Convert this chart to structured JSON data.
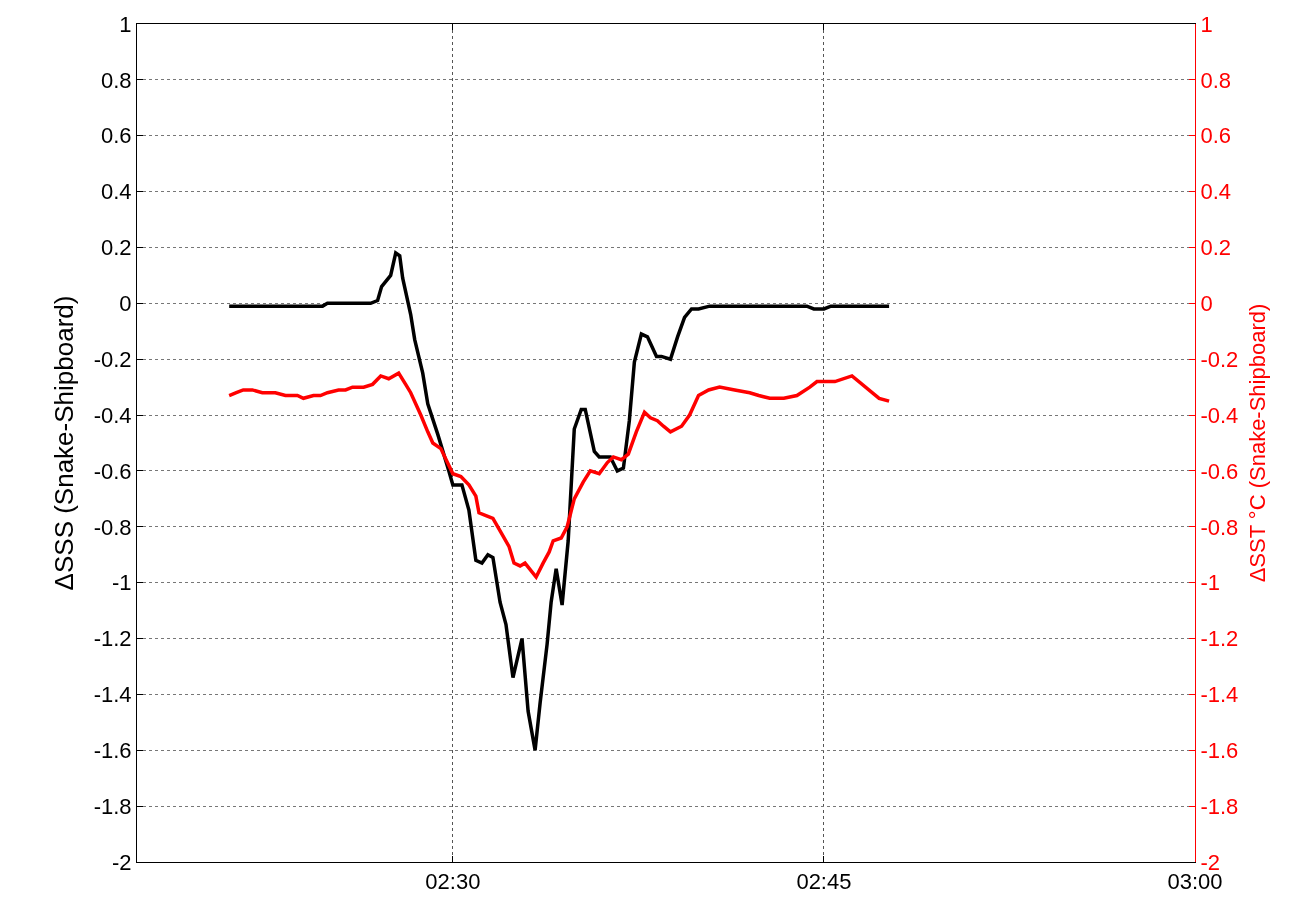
{
  "chart_data": {
    "type": "line",
    "ylabel": "ΔSSS (Snake-Shipboard)",
    "y2label": "ΔSST °C (Snake-Shipboard)",
    "xlim": [
      2.2872,
      3
    ],
    "xticks": [
      {
        "value": 2.5,
        "label": "02:30"
      },
      {
        "value": 2.75,
        "label": "02:45"
      },
      {
        "value": 3,
        "label": "03:00"
      }
    ],
    "ylim": [
      -2,
      1
    ],
    "yticks": [
      1,
      0.8,
      0.6,
      0.4,
      0.2,
      0,
      -0.2,
      -0.4,
      -0.6,
      -0.8,
      -1,
      -1.2,
      -1.4,
      -1.6,
      -1.8,
      -2
    ],
    "y2lim": [
      -2,
      1
    ],
    "y2ticks": [
      1,
      0.8,
      0.6,
      0.4,
      0.2,
      0,
      -0.2,
      -0.4,
      -0.6,
      -0.8,
      -1,
      -1.2,
      -1.4,
      -1.6,
      -1.8,
      -2
    ],
    "grid": true,
    "series": [
      {
        "color": "#000000",
        "x": [
          2.3493,
          2.4122,
          2.4155,
          2.4446,
          2.4493,
          2.452,
          2.4581,
          2.4615,
          2.4642,
          2.4662,
          2.4716,
          2.4743,
          2.4797,
          2.4831,
          2.4899,
          2.4973,
          2.5,
          2.5061,
          2.5108,
          2.5155,
          2.5196,
          2.5236,
          2.527,
          2.5318,
          2.5358,
          2.5405,
          2.5466,
          2.5507,
          2.5554,
          2.5588,
          2.5635,
          2.5662,
          2.5696,
          2.5736,
          2.5777,
          2.5818,
          2.5865,
          2.5892,
          2.5953,
          2.5986,
          2.6061,
          2.6108,
          2.6149,
          2.6189,
          2.6223,
          2.627,
          2.6311,
          2.6372,
          2.6405,
          2.6466,
          2.6514,
          2.6561,
          2.6608,
          2.6655,
          2.673,
          2.7385,
          2.7432,
          2.75,
          2.7547,
          2.7939
        ],
        "values": [
          -0.01,
          -0.01,
          0,
          0,
          0.01,
          0.06,
          0.1,
          0.18,
          0.17,
          0.09,
          -0.04,
          -0.13,
          -0.25,
          -0.36,
          -0.47,
          -0.6,
          -0.65,
          -0.65,
          -0.74,
          -0.92,
          -0.93,
          -0.9,
          -0.91,
          -1.07,
          -1.15,
          -1.34,
          -1.2,
          -1.46,
          -1.6,
          -1.43,
          -1.22,
          -1.07,
          -0.95,
          -1.08,
          -0.85,
          -0.45,
          -0.38,
          -0.38,
          -0.53,
          -0.55,
          -0.55,
          -0.6,
          -0.59,
          -0.42,
          -0.21,
          -0.11,
          -0.12,
          -0.19,
          -0.19,
          -0.2,
          -0.12,
          -0.05,
          -0.02,
          -0.02,
          -0.01,
          -0.01,
          -0.02,
          -0.02,
          -0.01,
          -0.01
        ]
      },
      {
        "color": "#ff0000",
        "axis": "y2",
        "x": [
          2.3493,
          2.3541,
          2.3588,
          2.3649,
          2.3716,
          2.3804,
          2.3872,
          2.3953,
          2.3993,
          2.4061,
          2.4108,
          2.4155,
          2.423,
          2.4277,
          2.4324,
          2.4399,
          2.4459,
          2.4514,
          2.4568,
          2.4635,
          2.4682,
          2.4716,
          2.4784,
          2.4831,
          2.4865,
          2.4919,
          2.5,
          2.5054,
          2.5108,
          2.5155,
          2.5176,
          2.5223,
          2.527,
          2.5324,
          2.5378,
          2.5412,
          2.5453,
          2.5486,
          2.5561,
          2.5608,
          2.5649,
          2.5676,
          2.573,
          2.577,
          2.5818,
          2.5878,
          2.5926,
          2.5986,
          2.6041,
          2.6081,
          2.6135,
          2.6182,
          2.6236,
          2.6291,
          2.6331,
          2.6378,
          2.6419,
          2.6466,
          2.6541,
          2.6595,
          2.6655,
          2.6723,
          2.6797,
          2.6899,
          2.7,
          2.7061,
          2.7135,
          2.723,
          2.7318,
          2.7405,
          2.7453,
          2.7574,
          2.7689,
          2.7872,
          2.7939
        ],
        "values": [
          -0.33,
          -0.32,
          -0.31,
          -0.31,
          -0.32,
          -0.32,
          -0.33,
          -0.33,
          -0.34,
          -0.33,
          -0.33,
          -0.32,
          -0.31,
          -0.31,
          -0.3,
          -0.3,
          -0.29,
          -0.26,
          -0.27,
          -0.25,
          -0.29,
          -0.32,
          -0.4,
          -0.46,
          -0.5,
          -0.52,
          -0.61,
          -0.62,
          -0.65,
          -0.69,
          -0.75,
          -0.76,
          -0.77,
          -0.82,
          -0.87,
          -0.93,
          -0.94,
          -0.93,
          -0.98,
          -0.93,
          -0.89,
          -0.85,
          -0.84,
          -0.8,
          -0.7,
          -0.64,
          -0.6,
          -0.61,
          -0.57,
          -0.55,
          -0.56,
          -0.54,
          -0.46,
          -0.39,
          -0.41,
          -0.42,
          -0.44,
          -0.46,
          -0.44,
          -0.4,
          -0.33,
          -0.31,
          -0.3,
          -0.31,
          -0.32,
          -0.33,
          -0.34,
          -0.34,
          -0.33,
          -0.3,
          -0.28,
          -0.28,
          -0.26,
          -0.34,
          -0.35
        ]
      }
    ]
  }
}
